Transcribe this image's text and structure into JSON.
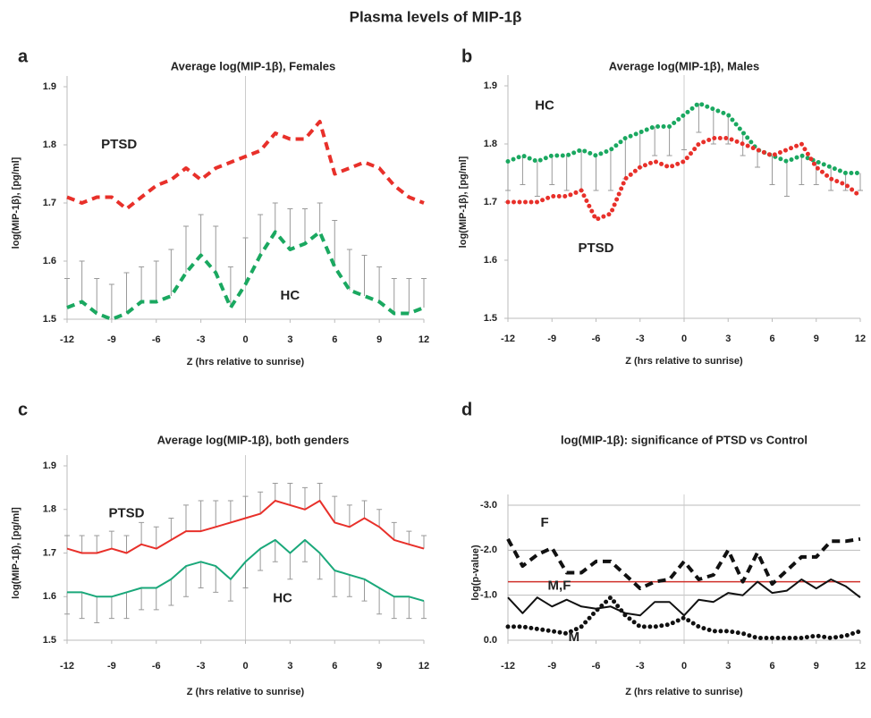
{
  "title": "Plasma levels of MIP-1β",
  "chart_data": [
    {
      "type": "line",
      "panel_label": "a",
      "title": "Average log(MIP-1β),  Females",
      "x_label": "Z (hrs relative to sunrise)",
      "y_label": "log(MIP-1β),  [pg/ml]",
      "x": [
        -12,
        -11,
        -10,
        -9,
        -8,
        -7,
        -6,
        -5,
        -4,
        -3,
        -2,
        -1,
        0,
        1,
        2,
        3,
        4,
        5,
        6,
        7,
        8,
        9,
        10,
        11,
        12
      ],
      "series": [
        {
          "name": "PTSD",
          "color": "#e8302a",
          "style": "dashed",
          "values": [
            1.71,
            1.7,
            1.71,
            1.71,
            1.69,
            1.71,
            1.73,
            1.74,
            1.76,
            1.74,
            1.76,
            1.77,
            1.78,
            1.79,
            1.82,
            1.81,
            1.81,
            1.84,
            1.75,
            1.76,
            1.77,
            1.76,
            1.73,
            1.71,
            1.7
          ]
        },
        {
          "name": "HC",
          "color": "#1aa860",
          "style": "dashed",
          "error_direction": "up",
          "values": [
            1.52,
            1.53,
            1.51,
            1.5,
            1.51,
            1.53,
            1.53,
            1.54,
            1.58,
            1.61,
            1.58,
            1.52,
            1.56,
            1.61,
            1.65,
            1.62,
            1.63,
            1.65,
            1.59,
            1.55,
            1.54,
            1.53,
            1.51,
            1.51,
            1.52
          ],
          "errors": [
            0.05,
            0.07,
            0.06,
            0.06,
            0.07,
            0.06,
            0.07,
            0.08,
            0.08,
            0.07,
            0.08,
            0.07,
            0.08,
            0.07,
            0.05,
            0.07,
            0.06,
            0.05,
            0.08,
            0.07,
            0.07,
            0.06,
            0.06,
            0.06,
            0.05
          ]
        }
      ],
      "xlim": [
        -12,
        12
      ],
      "xticks": [
        -12,
        -9,
        -6,
        -3,
        0,
        3,
        6,
        9,
        12
      ],
      "ylim": [
        1.5,
        1.9
      ],
      "yticks": [
        1.5,
        1.6,
        1.7,
        1.8,
        1.9
      ],
      "grid": false
    },
    {
      "type": "line",
      "panel_label": "b",
      "title": "Average log(MIP-1β),  Males",
      "x_label": "Z (hrs relative to sunrise)",
      "y_label": "log(MIP-1β),  [pg/ml]",
      "x": [
        -12,
        -11,
        -10,
        -9,
        -8,
        -7,
        -6,
        -5,
        -4,
        -3,
        -2,
        -1,
        0,
        1,
        2,
        3,
        4,
        5,
        6,
        7,
        8,
        9,
        10,
        11,
        12
      ],
      "series": [
        {
          "name": "HC",
          "color": "#1aa860",
          "style": "dotted",
          "error_direction": "down",
          "values": [
            1.77,
            1.78,
            1.77,
            1.78,
            1.78,
            1.79,
            1.78,
            1.79,
            1.81,
            1.82,
            1.83,
            1.83,
            1.85,
            1.87,
            1.86,
            1.85,
            1.82,
            1.79,
            1.78,
            1.77,
            1.78,
            1.77,
            1.76,
            1.75,
            1.75
          ],
          "errors": [
            0.05,
            0.05,
            0.06,
            0.05,
            0.06,
            0.07,
            0.06,
            0.07,
            0.07,
            0.06,
            0.05,
            0.05,
            0.06,
            0.05,
            0.06,
            0.05,
            0.04,
            0.03,
            0.05,
            0.06,
            0.05,
            0.04,
            0.04,
            0.03,
            0.03
          ]
        },
        {
          "name": "PTSD",
          "color": "#e8302a",
          "style": "dotted",
          "values": [
            1.7,
            1.7,
            1.7,
            1.71,
            1.71,
            1.72,
            1.67,
            1.68,
            1.74,
            1.76,
            1.77,
            1.76,
            1.77,
            1.8,
            1.81,
            1.81,
            1.8,
            1.79,
            1.78,
            1.79,
            1.8,
            1.76,
            1.74,
            1.73,
            1.71
          ]
        }
      ],
      "xlim": [
        -12,
        12
      ],
      "xticks": [
        -12,
        -9,
        -6,
        -3,
        0,
        3,
        6,
        9,
        12
      ],
      "ylim": [
        1.5,
        1.9
      ],
      "yticks": [
        1.5,
        1.6,
        1.7,
        1.8,
        1.9
      ],
      "grid": false
    },
    {
      "type": "line",
      "panel_label": "c",
      "title": "Average log(MIP-1β),  both genders",
      "x_label": "Z (hrs relative to sunrise)",
      "y_label": "log(MIP-1β),  [pg/ml]",
      "x": [
        -12,
        -11,
        -10,
        -9,
        -8,
        -7,
        -6,
        -5,
        -4,
        -3,
        -2,
        -1,
        0,
        1,
        2,
        3,
        4,
        5,
        6,
        7,
        8,
        9,
        10,
        11,
        12
      ],
      "series": [
        {
          "name": "PTSD",
          "color": "#e8302a",
          "style": "solid",
          "error_direction": "up",
          "values": [
            1.71,
            1.7,
            1.7,
            1.71,
            1.7,
            1.72,
            1.71,
            1.73,
            1.75,
            1.75,
            1.76,
            1.77,
            1.78,
            1.79,
            1.82,
            1.81,
            1.8,
            1.82,
            1.77,
            1.76,
            1.78,
            1.76,
            1.73,
            1.72,
            1.71
          ],
          "errors": [
            0.03,
            0.04,
            0.04,
            0.04,
            0.04,
            0.05,
            0.05,
            0.05,
            0.06,
            0.07,
            0.06,
            0.05,
            0.05,
            0.05,
            0.04,
            0.05,
            0.05,
            0.04,
            0.06,
            0.05,
            0.04,
            0.04,
            0.04,
            0.03,
            0.03
          ]
        },
        {
          "name": "HC",
          "color": "#1aa87a",
          "style": "solid",
          "error_direction": "down",
          "values": [
            1.61,
            1.61,
            1.6,
            1.6,
            1.61,
            1.62,
            1.62,
            1.64,
            1.67,
            1.68,
            1.67,
            1.64,
            1.68,
            1.71,
            1.73,
            1.7,
            1.73,
            1.7,
            1.66,
            1.65,
            1.64,
            1.62,
            1.6,
            1.6,
            1.59
          ],
          "errors": [
            0.05,
            0.06,
            0.06,
            0.05,
            0.06,
            0.05,
            0.05,
            0.06,
            0.07,
            0.06,
            0.06,
            0.05,
            0.06,
            0.05,
            0.05,
            0.06,
            0.05,
            0.06,
            0.06,
            0.05,
            0.05,
            0.06,
            0.05,
            0.05,
            0.04
          ]
        }
      ],
      "xlim": [
        -12,
        12
      ],
      "xticks": [
        -12,
        -9,
        -6,
        -3,
        0,
        3,
        6,
        9,
        12
      ],
      "ylim": [
        1.5,
        1.9
      ],
      "yticks": [
        1.5,
        1.6,
        1.7,
        1.8,
        1.9
      ],
      "grid": false
    },
    {
      "type": "line",
      "panel_label": "d",
      "title": "log(MIP-1β): significance of PTSD vs Control",
      "x_label": "Z (hrs relative to sunrise)",
      "y_label": "log(p-value)",
      "x": [
        -12,
        -11,
        -10,
        -9,
        -8,
        -7,
        -6,
        -5,
        -4,
        -3,
        -2,
        -1,
        0,
        1,
        2,
        3,
        4,
        5,
        6,
        7,
        8,
        9,
        10,
        11,
        12
      ],
      "series": [
        {
          "name": "F",
          "color": "#111111",
          "style": "dashed",
          "values": [
            -2.25,
            -1.65,
            -1.9,
            -2.05,
            -1.5,
            -1.5,
            -1.75,
            -1.75,
            -1.45,
            -1.15,
            -1.3,
            -1.35,
            -1.75,
            -1.35,
            -1.45,
            -2.0,
            -1.3,
            -1.95,
            -1.25,
            -1.55,
            -1.85,
            -1.85,
            -2.2,
            -2.2,
            -2.25
          ]
        },
        {
          "name": "M,F",
          "color": "#111111",
          "style": "solid",
          "values": [
            -0.95,
            -0.6,
            -0.95,
            -0.75,
            -0.9,
            -0.75,
            -0.7,
            -0.75,
            -0.6,
            -0.55,
            -0.85,
            -0.85,
            -0.55,
            -0.9,
            -0.85,
            -1.05,
            -1.0,
            -1.3,
            -1.05,
            -1.1,
            -1.35,
            -1.15,
            -1.35,
            -1.2,
            -0.95
          ]
        },
        {
          "name": "M",
          "color": "#111111",
          "style": "dotted",
          "values": [
            -0.3,
            -0.3,
            -0.25,
            -0.2,
            -0.15,
            -0.3,
            -0.65,
            -0.95,
            -0.55,
            -0.3,
            -0.3,
            -0.35,
            -0.5,
            -0.3,
            -0.2,
            -0.2,
            -0.15,
            -0.05,
            -0.05,
            -0.05,
            -0.05,
            -0.1,
            -0.05,
            -0.1,
            -0.2
          ]
        }
      ],
      "reference_line": {
        "value": -1.3,
        "color": "#d0302a"
      },
      "xlim": [
        -12,
        12
      ],
      "xticks": [
        -12,
        -9,
        -6,
        -3,
        0,
        3,
        6,
        9,
        12
      ],
      "ylim": [
        0,
        -3
      ],
      "yticks": [
        {
          "value": 0,
          "label": "0.0"
        },
        {
          "value": -1,
          "label": "-1.0"
        },
        {
          "value": -2,
          "label": "-2.0"
        },
        {
          "value": -3,
          "label": "-3.0"
        }
      ],
      "grid": true
    }
  ]
}
